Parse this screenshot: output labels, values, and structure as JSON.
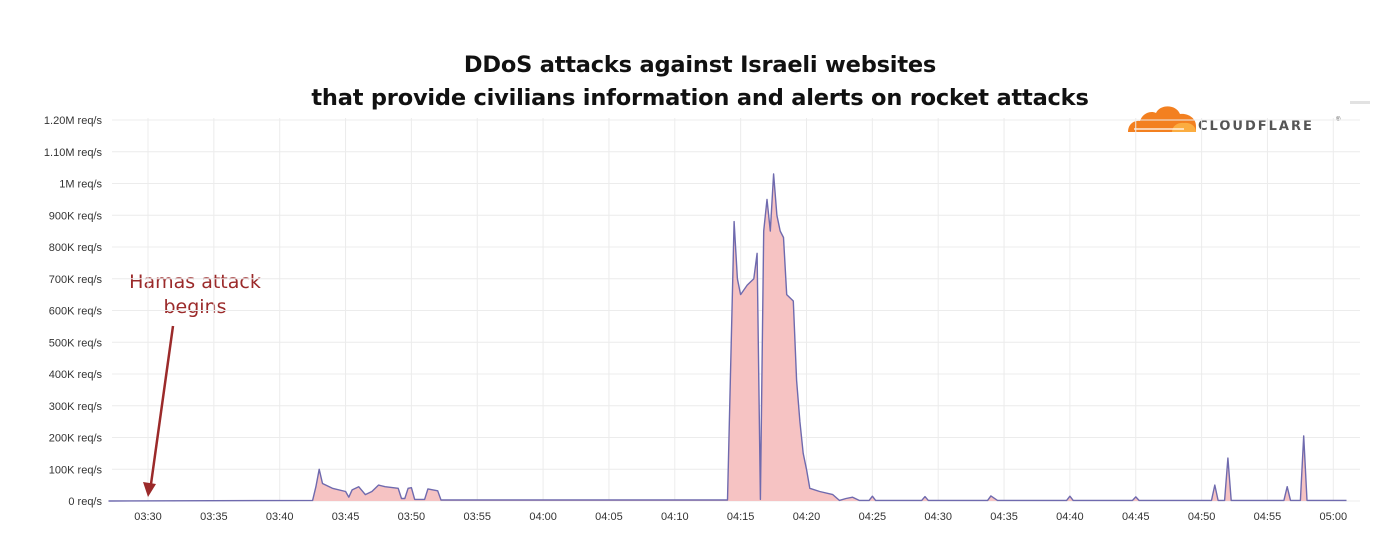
{
  "title_line1": "DDoS attacks against Israeli websites",
  "title_line2": "that provide civilians information and alerts on rocket attacks",
  "logo_text": "CLOUDFLARE",
  "logo_mark": "®",
  "annotation": {
    "line1": "Hamas attack",
    "line2": "begins",
    "points_to": "03:30",
    "color": "#9b2a2a"
  },
  "colors": {
    "line": "#6f6aae",
    "fill": "#f6c3c3",
    "grid": "#ececec",
    "logo_orange": "#f38020"
  },
  "chart_data": {
    "type": "area",
    "title": "DDoS attacks against Israeli websites that provide civilians information and alerts on rocket attacks",
    "xlabel": "",
    "ylabel": "",
    "x_unit": "minutes after 03:30",
    "x_ticks": [
      "03:30",
      "03:35",
      "03:40",
      "03:45",
      "03:50",
      "03:55",
      "04:00",
      "04:05",
      "04:10",
      "04:15",
      "04:20",
      "04:25",
      "04:30",
      "04:35",
      "04:40",
      "04:45",
      "04:50",
      "04:55",
      "05:00"
    ],
    "y_ticks": [
      "0 req/s",
      "100K req/s",
      "200K req/s",
      "300K req/s",
      "400K req/s",
      "500K req/s",
      "600K req/s",
      "700K req/s",
      "800K req/s",
      "900K req/s",
      "1M req/s",
      "1.10M req/s",
      "1.20M req/s"
    ],
    "ylim": [
      0,
      1200000
    ],
    "grid": true,
    "series": [
      {
        "name": "",
        "unit": "req/s",
        "points": [
          [
            "03:27",
            0
          ],
          [
            "03:42:30",
            2000
          ],
          [
            "03:42:45",
            45000
          ],
          [
            "03:43",
            100000
          ],
          [
            "03:43:15",
            55000
          ],
          [
            "03:44",
            40000
          ],
          [
            "03:45",
            30000
          ],
          [
            "03:45:15",
            12000
          ],
          [
            "03:45:30",
            35000
          ],
          [
            "03:46",
            45000
          ],
          [
            "03:46:30",
            20000
          ],
          [
            "03:47",
            30000
          ],
          [
            "03:47:30",
            50000
          ],
          [
            "03:48",
            45000
          ],
          [
            "03:49",
            40000
          ],
          [
            "03:49:15",
            8000
          ],
          [
            "03:49:30",
            8000
          ],
          [
            "03:49:45",
            40000
          ],
          [
            "03:50",
            42000
          ],
          [
            "03:50:15",
            5000
          ],
          [
            "03:51",
            5000
          ],
          [
            "03:51:15",
            38000
          ],
          [
            "03:52",
            32000
          ],
          [
            "03:52:15",
            3000
          ],
          [
            "04:14",
            3000
          ],
          [
            "04:14:30",
            880000
          ],
          [
            "04:14:45",
            700000
          ],
          [
            "04:15",
            650000
          ],
          [
            "04:15:30",
            680000
          ],
          [
            "04:16",
            700000
          ],
          [
            "04:16:15",
            780000
          ],
          [
            "04:16:30",
            5000
          ],
          [
            "04:16:45",
            850000
          ],
          [
            "04:17",
            950000
          ],
          [
            "04:17:15",
            850000
          ],
          [
            "04:17:30",
            1030000
          ],
          [
            "04:17:45",
            900000
          ],
          [
            "04:18",
            850000
          ],
          [
            "04:18:15",
            830000
          ],
          [
            "04:18:30",
            650000
          ],
          [
            "04:19",
            630000
          ],
          [
            "04:19:15",
            380000
          ],
          [
            "04:19:30",
            250000
          ],
          [
            "04:19:45",
            150000
          ],
          [
            "04:20",
            100000
          ],
          [
            "04:20:15",
            40000
          ],
          [
            "04:21",
            30000
          ],
          [
            "04:22",
            20000
          ],
          [
            "04:22:30",
            2000
          ],
          [
            "04:23",
            8000
          ],
          [
            "04:23:30",
            12000
          ],
          [
            "04:24",
            2000
          ],
          [
            "04:24:45",
            2000
          ],
          [
            "04:25",
            15000
          ],
          [
            "04:25:15",
            2000
          ],
          [
            "04:28:45",
            2000
          ],
          [
            "04:29",
            14000
          ],
          [
            "04:29:15",
            2000
          ],
          [
            "04:33:45",
            2000
          ],
          [
            "04:34",
            16000
          ],
          [
            "04:34:30",
            2000
          ],
          [
            "04:39:45",
            2000
          ],
          [
            "04:40",
            15000
          ],
          [
            "04:40:15",
            2000
          ],
          [
            "04:44:45",
            2000
          ],
          [
            "04:45",
            13000
          ],
          [
            "04:45:15",
            2000
          ],
          [
            "04:50:45",
            2000
          ],
          [
            "04:51",
            50000
          ],
          [
            "04:51:15",
            2000
          ],
          [
            "04:51:45",
            2000
          ],
          [
            "04:52",
            135000
          ],
          [
            "04:52:15",
            2000
          ],
          [
            "04:56:15",
            2000
          ],
          [
            "04:56:30",
            45000
          ],
          [
            "04:56:45",
            2000
          ],
          [
            "04:57:30",
            2000
          ],
          [
            "04:57:45",
            205000
          ],
          [
            "04:58",
            2000
          ],
          [
            "05:01",
            2000
          ]
        ]
      }
    ]
  }
}
